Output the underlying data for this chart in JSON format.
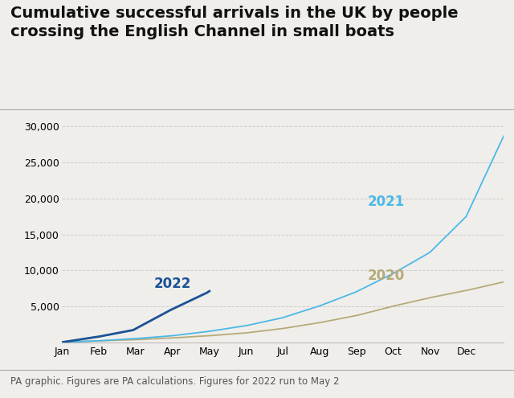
{
  "title": "Cumulative successful arrivals in the UK by people\ncrossing the English Channel in small boats",
  "title_fontsize": 14,
  "footnote": "PA graphic. Figures are PA calculations. Figures for 2022 run to May 2",
  "footnote_fontsize": 8.5,
  "background_color": "#f0eeea",
  "plot_bg_color": "#f0eeea",
  "ylim": [
    0,
    31000
  ],
  "yticks": [
    0,
    5000,
    10000,
    15000,
    20000,
    25000,
    30000
  ],
  "ytick_labels": [
    "",
    "5,000",
    "10,000",
    "15,000",
    "20,000",
    "25,000",
    "30,000"
  ],
  "months": [
    "Jan",
    "Feb",
    "Mar",
    "Apr",
    "May",
    "Jun",
    "Jul",
    "Aug",
    "Sep",
    "Oct",
    "Nov",
    "Dec"
  ],
  "color_2020": "#b5aa7a",
  "color_2021": "#4cb8e8",
  "color_2022": "#1a5296",
  "label_2020": "2020",
  "label_2021": "2021",
  "label_2022": "2022",
  "month_ends_2020": [
    0,
    200,
    350,
    600,
    900,
    1300,
    1900,
    2700,
    3700,
    5000,
    6200,
    7200,
    8400
  ],
  "month_ends_2021": [
    0,
    200,
    500,
    900,
    1500,
    2300,
    3400,
    5000,
    7000,
    9500,
    12500,
    17500,
    28700
  ],
  "month_ends_2022": [
    0,
    800,
    1700,
    4500,
    6900,
    7120
  ]
}
